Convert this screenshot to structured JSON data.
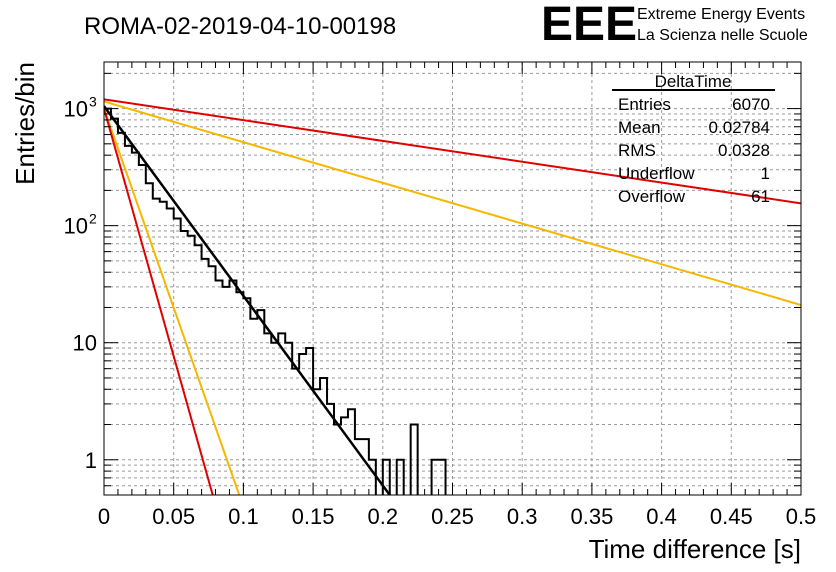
{
  "title": "ROMA-02-2019-04-10-00198",
  "logo": {
    "letters": "EEE",
    "line1": "Extreme Energy Events",
    "line2": "La Scienza nelle Scuole",
    "color": "#1a1aff"
  },
  "stats_box": {
    "name": "DeltaTime",
    "rows": [
      {
        "label": "Entries",
        "value": "6070"
      },
      {
        "label": "Mean",
        "value": "0.02784"
      },
      {
        "label": "RMS",
        "value": "0.0328"
      },
      {
        "label": "Underflow",
        "value": "1"
      },
      {
        "label": "Overflow",
        "value": "61"
      }
    ]
  },
  "chart_data": {
    "type": "line",
    "xlabel": "Time difference [s]",
    "ylabel": "Entries/bin",
    "xlim": [
      0,
      0.5
    ],
    "ylim": [
      0.5,
      2500
    ],
    "yscale": "log",
    "grid": true,
    "x_ticks": [
      {
        "v": 0,
        "label": "0"
      },
      {
        "v": 0.05,
        "label": "0.05"
      },
      {
        "v": 0.1,
        "label": "0.1"
      },
      {
        "v": 0.15,
        "label": "0.15"
      },
      {
        "v": 0.2,
        "label": "0.2"
      },
      {
        "v": 0.25,
        "label": "0.25"
      },
      {
        "v": 0.3,
        "label": "0.3"
      },
      {
        "v": 0.35,
        "label": "0.35"
      },
      {
        "v": 0.4,
        "label": "0.4"
      },
      {
        "v": 0.45,
        "label": "0.45"
      },
      {
        "v": 0.5,
        "label": "0.5"
      }
    ],
    "y_ticks": [
      {
        "v": 1,
        "base": "1",
        "exp": ""
      },
      {
        "v": 10,
        "base": "10",
        "exp": ""
      },
      {
        "v": 100,
        "base": "10",
        "exp": "2"
      },
      {
        "v": 1000,
        "base": "10",
        "exp": "3"
      }
    ],
    "histogram": {
      "bin_width": 0.005,
      "bin_start": 0,
      "values": [
        1000,
        820,
        620,
        480,
        420,
        330,
        230,
        170,
        160,
        140,
        115,
        90,
        82,
        68,
        52,
        45,
        34,
        30,
        34,
        27,
        24,
        16,
        19,
        12,
        10,
        12,
        10,
        6,
        8,
        9,
        4,
        5,
        3,
        2,
        2.3,
        2.7,
        1.5,
        1.5,
        1,
        0,
        1,
        0,
        1,
        0,
        2,
        0,
        0,
        1,
        1,
        0,
        0,
        0,
        0,
        0,
        0,
        0,
        0,
        0,
        0,
        0,
        0,
        0,
        0,
        0,
        0,
        0,
        0,
        0,
        0,
        0,
        0,
        0,
        0,
        0,
        0,
        0,
        0,
        0,
        0,
        0,
        0,
        0,
        0,
        0,
        0,
        0,
        0,
        0,
        0,
        0,
        0,
        0,
        0,
        0,
        0,
        0,
        0,
        0,
        0,
        0
      ],
      "color": "#000000"
    },
    "series": [
      {
        "x": [
          0,
          0.5
        ],
        "y": [
          1200,
          155
        ],
        "color": "#e00000"
      },
      {
        "x": [
          0,
          0.5
        ],
        "y": [
          1150,
          21
        ],
        "color": "#f5b800"
      },
      {
        "x": [
          0,
          0.205
        ],
        "y": [
          1050,
          0.5
        ],
        "color": "#000000"
      },
      {
        "x": [
          0,
          0.097
        ],
        "y": [
          1000,
          0.5
        ],
        "color": "#f5b800"
      },
      {
        "x": [
          0,
          0.078
        ],
        "y": [
          1000,
          0.5
        ],
        "color": "#e00000"
      }
    ]
  }
}
